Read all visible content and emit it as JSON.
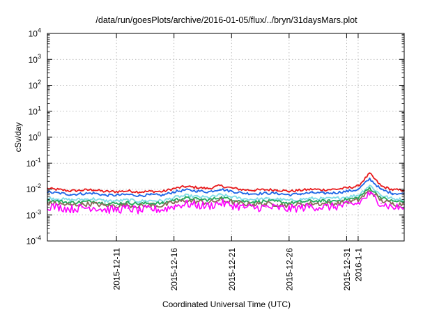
{
  "chart_data": {
    "type": "line",
    "title": "/data/run/goesPlots/archive/2016-01-05/flux/../bryn/31daysMars.plot",
    "xlabel": "Coordinated Universal Time (UTC)",
    "ylabel": "cSv/day",
    "y_scale": "log",
    "ylim": [
      0.0001,
      10000
    ],
    "xlim": [
      "2015-12-05",
      "2016-01-05"
    ],
    "grid": true,
    "y_ticks": [
      {
        "base": "10",
        "exp": "-4"
      },
      {
        "base": "10",
        "exp": "-3"
      },
      {
        "base": "10",
        "exp": "-2"
      },
      {
        "base": "10",
        "exp": "-1"
      },
      {
        "base": "10",
        "exp": "0"
      },
      {
        "base": "10",
        "exp": "1"
      },
      {
        "base": "10",
        "exp": "2"
      },
      {
        "base": "10",
        "exp": "3"
      },
      {
        "base": "10",
        "exp": "4"
      }
    ],
    "x_ticks": [
      {
        "date": "2015-12-11",
        "label": "2015-12-11"
      },
      {
        "date": "2015-12-16",
        "label": "2015-12-16"
      },
      {
        "date": "2015-12-21",
        "label": "2015-12-21"
      },
      {
        "date": "2015-12-26",
        "label": "2015-12-26"
      },
      {
        "date": "2015-12-31",
        "label": "2015-12-31"
      },
      {
        "date": "2016-01-01",
        "label": "2016-1-1"
      }
    ],
    "series": [
      {
        "color": "#e8191b",
        "x": [
          "2015-12-05",
          "2015-12-06",
          "2015-12-07",
          "2015-12-08",
          "2015-12-09",
          "2015-12-10",
          "2015-12-11",
          "2015-12-12",
          "2015-12-13",
          "2015-12-14",
          "2015-12-15",
          "2015-12-16",
          "2015-12-17",
          "2015-12-18",
          "2015-12-19",
          "2015-12-20",
          "2015-12-21",
          "2015-12-22",
          "2015-12-23",
          "2015-12-24",
          "2015-12-25",
          "2015-12-26",
          "2015-12-27",
          "2015-12-28",
          "2015-12-29",
          "2015-12-30",
          "2015-12-31",
          "2016-01-01",
          "2016-01-02",
          "2016-01-03",
          "2016-01-04",
          "2016-01-05"
        ],
        "values": [
          0.0105,
          0.0095,
          0.0085,
          0.009,
          0.0095,
          0.008,
          0.008,
          0.0085,
          0.0078,
          0.0082,
          0.008,
          0.0105,
          0.0125,
          0.0115,
          0.0105,
          0.0135,
          0.011,
          0.0095,
          0.009,
          0.0095,
          0.0093,
          0.0082,
          0.009,
          0.0098,
          0.0094,
          0.0098,
          0.011,
          0.013,
          0.04,
          0.013,
          0.0094,
          0.009
        ]
      },
      {
        "color": "#1e66e6",
        "x": [
          "2015-12-05",
          "2015-12-06",
          "2015-12-07",
          "2015-12-08",
          "2015-12-09",
          "2015-12-10",
          "2015-12-11",
          "2015-12-12",
          "2015-12-13",
          "2015-12-14",
          "2015-12-15",
          "2015-12-16",
          "2015-12-17",
          "2015-12-18",
          "2015-12-19",
          "2015-12-20",
          "2015-12-21",
          "2015-12-22",
          "2015-12-23",
          "2015-12-24",
          "2015-12-25",
          "2015-12-26",
          "2015-12-27",
          "2015-12-28",
          "2015-12-29",
          "2015-12-30",
          "2015-12-31",
          "2016-01-01",
          "2016-01-02",
          "2016-01-03",
          "2016-01-04",
          "2016-01-05"
        ],
        "values": [
          0.0075,
          0.007,
          0.0062,
          0.0066,
          0.007,
          0.0058,
          0.0058,
          0.0062,
          0.0056,
          0.006,
          0.0058,
          0.0078,
          0.0092,
          0.0085,
          0.0078,
          0.01,
          0.0082,
          0.007,
          0.0066,
          0.007,
          0.0068,
          0.006,
          0.0066,
          0.0072,
          0.0069,
          0.0072,
          0.0082,
          0.0095,
          0.025,
          0.0095,
          0.0069,
          0.0066
        ]
      },
      {
        "color": "#7fdce6",
        "x": [
          "2015-12-05",
          "2015-12-06",
          "2015-12-07",
          "2015-12-08",
          "2015-12-09",
          "2015-12-10",
          "2015-12-11",
          "2015-12-12",
          "2015-12-13",
          "2015-12-14",
          "2015-12-15",
          "2015-12-16",
          "2015-12-17",
          "2015-12-18",
          "2015-12-19",
          "2015-12-20",
          "2015-12-21",
          "2015-12-22",
          "2015-12-23",
          "2015-12-24",
          "2015-12-25",
          "2015-12-26",
          "2015-12-27",
          "2015-12-28",
          "2015-12-29",
          "2015-12-30",
          "2015-12-31",
          "2016-01-01",
          "2016-01-02",
          "2016-01-03",
          "2016-01-04",
          "2016-01-05"
        ],
        "values": [
          0.0045,
          0.0042,
          0.0038,
          0.004,
          0.0042,
          0.0035,
          0.0035,
          0.0038,
          0.0034,
          0.0036,
          0.0035,
          0.0047,
          0.0056,
          0.0051,
          0.0047,
          0.006,
          0.005,
          0.0042,
          0.004,
          0.0042,
          0.0041,
          0.0036,
          0.004,
          0.0044,
          0.0042,
          0.0044,
          0.005,
          0.0058,
          0.014,
          0.0058,
          0.0042,
          0.004
        ]
      },
      {
        "color": "#22a85a",
        "x": [
          "2015-12-05",
          "2015-12-06",
          "2015-12-07",
          "2015-12-08",
          "2015-12-09",
          "2015-12-10",
          "2015-12-11",
          "2015-12-12",
          "2015-12-13",
          "2015-12-14",
          "2015-12-15",
          "2015-12-16",
          "2015-12-17",
          "2015-12-18",
          "2015-12-19",
          "2015-12-20",
          "2015-12-21",
          "2015-12-22",
          "2015-12-23",
          "2015-12-24",
          "2015-12-25",
          "2015-12-26",
          "2015-12-27",
          "2015-12-28",
          "2015-12-29",
          "2015-12-30",
          "2015-12-31",
          "2016-01-01",
          "2016-01-02",
          "2016-01-03",
          "2016-01-04",
          "2016-01-05"
        ],
        "values": [
          0.0036,
          0.0034,
          0.003,
          0.0032,
          0.0034,
          0.0028,
          0.0028,
          0.003,
          0.0027,
          0.0029,
          0.0028,
          0.0038,
          0.0045,
          0.0041,
          0.0038,
          0.0048,
          0.004,
          0.0034,
          0.0032,
          0.0034,
          0.0033,
          0.0029,
          0.0032,
          0.0035,
          0.0034,
          0.0035,
          0.004,
          0.0046,
          0.011,
          0.0046,
          0.0034,
          0.0032
        ]
      },
      {
        "color": "#8a6a5a",
        "x": [
          "2015-12-05",
          "2015-12-06",
          "2015-12-07",
          "2015-12-08",
          "2015-12-09",
          "2015-12-10",
          "2015-12-11",
          "2015-12-12",
          "2015-12-13",
          "2015-12-14",
          "2015-12-15",
          "2015-12-16",
          "2015-12-17",
          "2015-12-18",
          "2015-12-19",
          "2015-12-20",
          "2015-12-21",
          "2015-12-22",
          "2015-12-23",
          "2015-12-24",
          "2015-12-25",
          "2015-12-26",
          "2015-12-27",
          "2015-12-28",
          "2015-12-29",
          "2015-12-30",
          "2015-12-31",
          "2016-01-01",
          "2016-01-02",
          "2016-01-03",
          "2016-01-04",
          "2016-01-05"
        ],
        "values": [
          0.0029,
          0.0027,
          0.0024,
          0.0026,
          0.0027,
          0.0023,
          0.0023,
          0.0024,
          0.0022,
          0.0023,
          0.0023,
          0.003,
          0.0036,
          0.0033,
          0.003,
          0.0038,
          0.0032,
          0.0027,
          0.0026,
          0.0027,
          0.0026,
          0.0023,
          0.0026,
          0.0028,
          0.0027,
          0.0028,
          0.0032,
          0.0037,
          0.0085,
          0.0037,
          0.0027,
          0.0026
        ]
      },
      {
        "color": "#ff00ff",
        "x": [
          "2015-12-05",
          "2015-12-06",
          "2015-12-07",
          "2015-12-08",
          "2015-12-09",
          "2015-12-10",
          "2015-12-11",
          "2015-12-12",
          "2015-12-13",
          "2015-12-14",
          "2015-12-15",
          "2015-12-16",
          "2015-12-17",
          "2015-12-18",
          "2015-12-19",
          "2015-12-20",
          "2015-12-21",
          "2015-12-22",
          "2015-12-23",
          "2015-12-24",
          "2015-12-25",
          "2015-12-26",
          "2015-12-27",
          "2015-12-28",
          "2015-12-29",
          "2015-12-30",
          "2015-12-31",
          "2016-01-01",
          "2016-01-02",
          "2016-01-03",
          "2016-01-04",
          "2016-01-05"
        ],
        "values": [
          0.0022,
          0.002,
          0.0017,
          0.0019,
          0.002,
          0.0016,
          0.0016,
          0.0018,
          0.0015,
          0.0017,
          0.0016,
          0.0022,
          0.0027,
          0.0024,
          0.0022,
          0.0029,
          0.0024,
          0.002,
          0.0019,
          0.002,
          0.0019,
          0.0017,
          0.0019,
          0.0021,
          0.002,
          0.0021,
          0.0024,
          0.0028,
          0.0065,
          0.0028,
          0.002,
          0.0019
        ]
      }
    ]
  }
}
